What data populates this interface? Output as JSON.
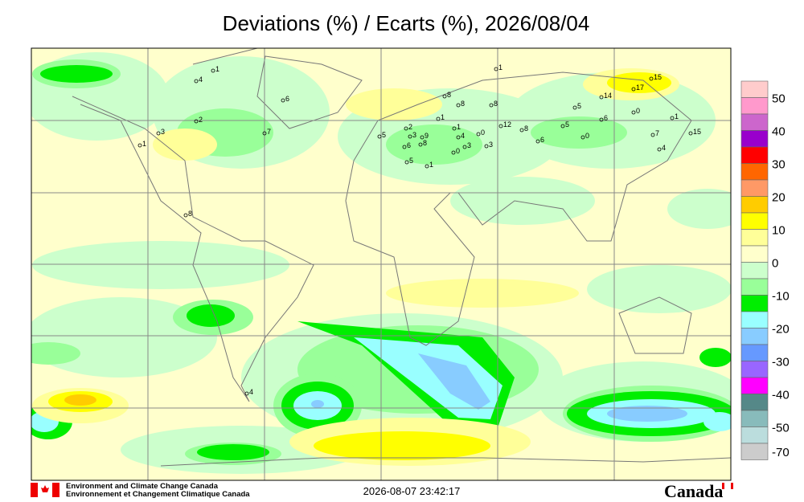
{
  "title": "Deviations (%) / Ecarts (%), 2026/08/04",
  "colorbar": {
    "labels": [
      "50",
      "40",
      "30",
      "20",
      "10",
      "0",
      "-10",
      "-20",
      "-30",
      "-40",
      "-50",
      "-70"
    ]
  },
  "stations": [
    "1",
    "4",
    "6",
    "2",
    "3",
    "1",
    "7",
    "8",
    "4",
    "1",
    "8",
    "8",
    "8",
    "5",
    "14",
    "17",
    "15",
    "0",
    "6",
    "1",
    "12",
    "8",
    "5",
    "6",
    "0",
    "7",
    "15",
    "4",
    "1",
    "1",
    "0",
    "4",
    "5",
    "2",
    "3",
    "9",
    "6",
    "8",
    "3",
    "0",
    "3",
    "5",
    "1"
  ],
  "footer": {
    "agency_en": "Environment and Climate Change Canada",
    "agency_fr": "Environnement et Changement Climatique Canada",
    "timestamp": "2026-08-07 23:42:17",
    "wordmark": "Canada"
  }
}
